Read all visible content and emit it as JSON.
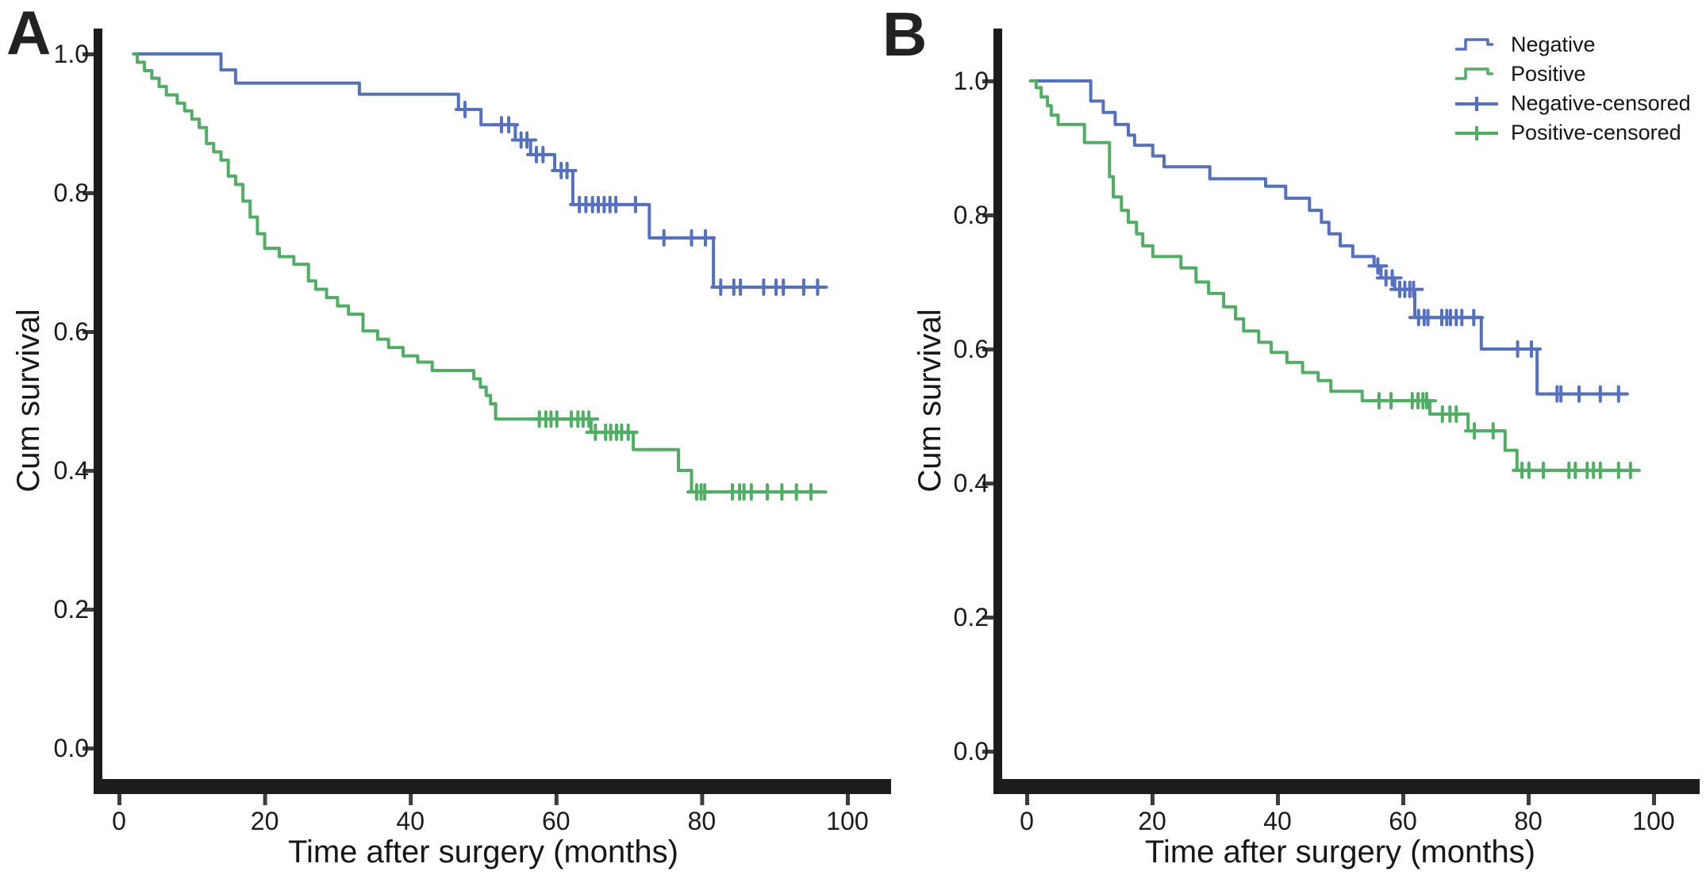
{
  "legend": {
    "entries": [
      {
        "label": "Negative",
        "type": "step",
        "color": "#5570c0"
      },
      {
        "label": "Positive",
        "type": "step",
        "color": "#4fae63"
      },
      {
        "label": "Negative-censored",
        "type": "censored",
        "color": "#5570c0"
      },
      {
        "label": "Positive-censored",
        "type": "censored",
        "color": "#4fae63"
      }
    ]
  },
  "chart_data": [
    {
      "panel": "A",
      "type": "line",
      "subtype": "kaplan-meier-step",
      "xlabel": "Time after surgery (months)",
      "ylabel": "Cum survival",
      "xlim": [
        0,
        100
      ],
      "ylim": [
        0.0,
        1.0
      ],
      "x_ticks": [
        0,
        20,
        40,
        60,
        80,
        100
      ],
      "x_tick_labels": [
        "0",
        "20",
        "40",
        "60",
        "80",
        "100"
      ],
      "y_ticks": [
        1.0,
        0.8,
        0.6,
        0.4,
        0.2,
        0.0
      ],
      "y_tick_labels": [
        "1.0",
        "0.8",
        "0.6",
        "0.4",
        "0.2",
        "0.0"
      ],
      "grid": false,
      "legend_position": "top-right-of-figure",
      "series": [
        {
          "name": "Negative",
          "color": "#5570c0",
          "start": 2.0,
          "end": 96.7,
          "steps": [
            [
              14,
              0.977
            ],
            [
              16,
              0.958
            ],
            [
              33,
              0.942
            ],
            [
              46.6,
              0.92
            ],
            [
              49.7,
              0.898
            ],
            [
              54.4,
              0.876
            ],
            [
              56.5,
              0.855
            ],
            [
              59.8,
              0.832
            ],
            [
              62.3,
              0.783
            ],
            [
              72.8,
              0.735
            ],
            [
              81.6,
              0.664
            ]
          ],
          "censors": [
            [
              47.5,
              0.92
            ],
            [
              52.5,
              0.898
            ],
            [
              53.5,
              0.898
            ],
            [
              55.2,
              0.876
            ],
            [
              56.0,
              0.876
            ],
            [
              57.3,
              0.855
            ],
            [
              58.2,
              0.855
            ],
            [
              60.7,
              0.832
            ],
            [
              61.5,
              0.832
            ],
            [
              63.2,
              0.783
            ],
            [
              64.1,
              0.783
            ],
            [
              65.0,
              0.783
            ],
            [
              65.8,
              0.783
            ],
            [
              66.6,
              0.783
            ],
            [
              67.4,
              0.783
            ],
            [
              68.2,
              0.783
            ],
            [
              70.9,
              0.783
            ],
            [
              74.8,
              0.735
            ],
            [
              78.6,
              0.735
            ],
            [
              80.5,
              0.735
            ],
            [
              82.6,
              0.664
            ],
            [
              84.4,
              0.664
            ],
            [
              85.3,
              0.664
            ],
            [
              88.5,
              0.664
            ],
            [
              90.2,
              0.664
            ],
            [
              91.2,
              0.664
            ],
            [
              94.0,
              0.664
            ],
            [
              95.9,
              0.664
            ]
          ]
        },
        {
          "name": "Positive",
          "color": "#4fae63",
          "start": 2.0,
          "end": 97.0,
          "steps": [
            [
              2.5,
              0.988
            ],
            [
              3.5,
              0.976
            ],
            [
              4.5,
              0.965
            ],
            [
              5.5,
              0.953
            ],
            [
              6.5,
              0.941
            ],
            [
              8,
              0.929
            ],
            [
              9,
              0.918
            ],
            [
              10,
              0.906
            ],
            [
              11,
              0.894
            ],
            [
              12,
              0.871
            ],
            [
              13,
              0.859
            ],
            [
              14,
              0.847
            ],
            [
              15,
              0.824
            ],
            [
              16,
              0.812
            ],
            [
              17,
              0.788
            ],
            [
              18,
              0.765
            ],
            [
              19,
              0.741
            ],
            [
              20,
              0.72
            ],
            [
              22,
              0.708
            ],
            [
              24,
              0.697
            ],
            [
              26,
              0.673
            ],
            [
              27,
              0.661
            ],
            [
              28.5,
              0.649
            ],
            [
              30,
              0.637
            ],
            [
              31.5,
              0.625
            ],
            [
              33.5,
              0.601
            ],
            [
              35.5,
              0.589
            ],
            [
              37,
              0.577
            ],
            [
              39,
              0.565
            ],
            [
              41,
              0.556
            ],
            [
              43,
              0.544
            ],
            [
              48.7,
              0.532
            ],
            [
              49.6,
              0.52
            ],
            [
              50.4,
              0.508
            ],
            [
              51.0,
              0.496
            ],
            [
              51.7,
              0.474
            ],
            [
              64.8,
              0.455
            ],
            [
              70.6,
              0.43
            ],
            [
              76.8,
              0.4
            ],
            [
              78.6,
              0.369
            ]
          ],
          "censors": [
            [
              57.7,
              0.474
            ],
            [
              58.6,
              0.474
            ],
            [
              59.3,
              0.474
            ],
            [
              60.1,
              0.474
            ],
            [
              62.1,
              0.474
            ],
            [
              63.0,
              0.474
            ],
            [
              63.7,
              0.474
            ],
            [
              64.5,
              0.474
            ],
            [
              65.4,
              0.455
            ],
            [
              66.8,
              0.455
            ],
            [
              67.5,
              0.455
            ],
            [
              68.3,
              0.455
            ],
            [
              69.0,
              0.455
            ],
            [
              69.9,
              0.455
            ],
            [
              79.3,
              0.369
            ],
            [
              79.9,
              0.369
            ],
            [
              80.4,
              0.369
            ],
            [
              84.2,
              0.369
            ],
            [
              85.2,
              0.369
            ],
            [
              85.8,
              0.369
            ],
            [
              86.8,
              0.369
            ],
            [
              89.0,
              0.369
            ],
            [
              91.0,
              0.369
            ],
            [
              93.0,
              0.369
            ],
            [
              95.0,
              0.369
            ]
          ]
        }
      ]
    },
    {
      "panel": "B",
      "type": "line",
      "subtype": "kaplan-meier-step",
      "xlabel": "Time after surgery (months)",
      "ylabel": "Cum survival",
      "xlim": [
        0,
        100
      ],
      "ylim": [
        0.0,
        1.0
      ],
      "x_ticks": [
        0,
        20,
        40,
        60,
        80,
        100
      ],
      "x_tick_labels": [
        "0",
        "20",
        "40",
        "60",
        "80",
        "100"
      ],
      "y_ticks": [
        1.0,
        0.8,
        0.6,
        0.4,
        0.2,
        0.0
      ],
      "y_tick_labels": [
        "1.0",
        "0.8",
        "0.6",
        "0.4",
        "0.2",
        "0.0"
      ],
      "grid": false,
      "legend_position": "top-right-of-figure",
      "series": [
        {
          "name": "Negative",
          "color": "#5570c0",
          "start": 0.6,
          "end": 95.5,
          "steps": [
            [
              10.2,
              0.97
            ],
            [
              12.2,
              0.953
            ],
            [
              14.1,
              0.935
            ],
            [
              16.2,
              0.919
            ],
            [
              17.2,
              0.904
            ],
            [
              20.1,
              0.888
            ],
            [
              21.9,
              0.872
            ],
            [
              29.2,
              0.854
            ],
            [
              38.1,
              0.843
            ],
            [
              41.3,
              0.825
            ],
            [
              45.1,
              0.807
            ],
            [
              47.0,
              0.789
            ],
            [
              48.2,
              0.772
            ],
            [
              50.0,
              0.754
            ],
            [
              52.0,
              0.738
            ],
            [
              55.4,
              0.724
            ],
            [
              56.5,
              0.706
            ],
            [
              58.7,
              0.689
            ],
            [
              61.9,
              0.647
            ],
            [
              72.5,
              0.6
            ],
            [
              81.4,
              0.533
            ]
          ],
          "censors": [
            [
              56.0,
              0.724
            ],
            [
              57.3,
              0.706
            ],
            [
              58.3,
              0.706
            ],
            [
              59.5,
              0.689
            ],
            [
              60.3,
              0.689
            ],
            [
              61.1,
              0.689
            ],
            [
              61.7,
              0.689
            ],
            [
              62.5,
              0.647
            ],
            [
              63.4,
              0.647
            ],
            [
              64.0,
              0.647
            ],
            [
              66.2,
              0.647
            ],
            [
              67.0,
              0.647
            ],
            [
              67.6,
              0.647
            ],
            [
              68.5,
              0.647
            ],
            [
              69.4,
              0.647
            ],
            [
              71.3,
              0.647
            ],
            [
              78.3,
              0.6
            ],
            [
              80.5,
              0.6
            ],
            [
              84.6,
              0.533
            ],
            [
              85.2,
              0.533
            ],
            [
              88.1,
              0.533
            ],
            [
              91.5,
              0.533
            ],
            [
              94.4,
              0.533
            ]
          ]
        },
        {
          "name": "Positive",
          "color": "#4fae63",
          "start": 0.6,
          "end": 97.0,
          "steps": [
            [
              1.5,
              0.99
            ],
            [
              2.3,
              0.976
            ],
            [
              3.3,
              0.963
            ],
            [
              3.9,
              0.949
            ],
            [
              5.0,
              0.935
            ],
            [
              9.2,
              0.908
            ],
            [
              13.2,
              0.857
            ],
            [
              13.8,
              0.827
            ],
            [
              15.1,
              0.807
            ],
            [
              16.2,
              0.789
            ],
            [
              17.5,
              0.772
            ],
            [
              18.5,
              0.754
            ],
            [
              20.1,
              0.738
            ],
            [
              24.6,
              0.721
            ],
            [
              27.0,
              0.7
            ],
            [
              29.0,
              0.683
            ],
            [
              31.4,
              0.663
            ],
            [
              33.3,
              0.645
            ],
            [
              34.6,
              0.627
            ],
            [
              37.0,
              0.61
            ],
            [
              39.0,
              0.595
            ],
            [
              41.5,
              0.58
            ],
            [
              44.0,
              0.565
            ],
            [
              46.5,
              0.553
            ],
            [
              48.5,
              0.537
            ],
            [
              53.5,
              0.523
            ],
            [
              64.3,
              0.503
            ],
            [
              70.4,
              0.478
            ],
            [
              76.3,
              0.449
            ],
            [
              78.2,
              0.419
            ]
          ],
          "censors": [
            [
              56.2,
              0.523
            ],
            [
              58.1,
              0.523
            ],
            [
              61.5,
              0.523
            ],
            [
              62.4,
              0.523
            ],
            [
              63.2,
              0.523
            ],
            [
              63.8,
              0.523
            ],
            [
              66.3,
              0.503
            ],
            [
              67.5,
              0.503
            ],
            [
              68.5,
              0.503
            ],
            [
              71.4,
              0.478
            ],
            [
              74.4,
              0.478
            ],
            [
              79.0,
              0.419
            ],
            [
              80.1,
              0.419
            ],
            [
              82.4,
              0.419
            ],
            [
              86.5,
              0.419
            ],
            [
              87.5,
              0.419
            ],
            [
              89.4,
              0.419
            ],
            [
              90.4,
              0.419
            ],
            [
              91.5,
              0.419
            ],
            [
              94.4,
              0.419
            ],
            [
              96.3,
              0.419
            ]
          ]
        }
      ]
    }
  ]
}
